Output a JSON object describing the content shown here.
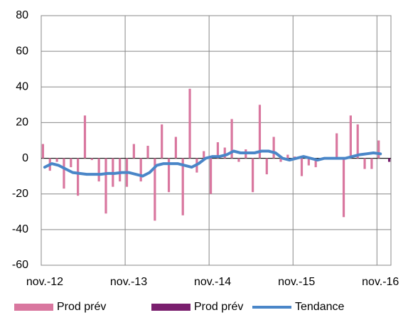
{
  "chart_data": {
    "type": "bar",
    "categories": [
      "nov.-12",
      null,
      null,
      null,
      null,
      null,
      null,
      null,
      null,
      null,
      null,
      null,
      "nov.-13",
      null,
      null,
      null,
      null,
      null,
      null,
      null,
      null,
      null,
      null,
      null,
      "nov.-14",
      null,
      null,
      null,
      null,
      null,
      null,
      null,
      null,
      null,
      null,
      null,
      "nov.-15",
      null,
      null,
      null,
      null,
      null,
      null,
      null,
      null,
      null,
      null,
      null,
      "nov.-16",
      null
    ],
    "series": [
      {
        "name": "Prod prév",
        "color": "#d9779f",
        "type": "bar",
        "values": [
          8,
          -7,
          -2,
          -17,
          -5,
          -21,
          24,
          -1,
          -13,
          -31,
          -16,
          -13,
          -16,
          8,
          -13,
          7,
          -35,
          19,
          -19,
          12,
          -32,
          39,
          -8,
          4,
          -20,
          9,
          6,
          22,
          -2,
          5,
          -19,
          30,
          -9,
          12,
          -2,
          2,
          1,
          -10,
          -4,
          -5,
          0,
          0,
          14,
          -33,
          24,
          19,
          -6,
          -6,
          10,
          null
        ]
      },
      {
        "name": "Prod prév",
        "color": "#7a1f6e",
        "type": "bar",
        "values": [
          null,
          null,
          null,
          null,
          null,
          null,
          null,
          null,
          null,
          null,
          null,
          null,
          null,
          null,
          null,
          null,
          null,
          null,
          null,
          null,
          null,
          null,
          null,
          null,
          null,
          null,
          null,
          null,
          null,
          null,
          null,
          null,
          null,
          null,
          null,
          null,
          null,
          null,
          null,
          null,
          null,
          null,
          null,
          null,
          null,
          null,
          null,
          null,
          null,
          -2
        ]
      },
      {
        "name": "Tendance",
        "color": "#4a86c8",
        "type": "line",
        "values": [
          -5,
          -3,
          -4,
          -6,
          -8,
          -8.5,
          -9,
          -9,
          -9,
          -8.5,
          -8.5,
          -8,
          -8,
          -9,
          -10,
          -8,
          -4,
          -3,
          -3,
          -3,
          -4,
          -5,
          -3,
          0,
          1,
          1,
          2,
          4,
          3,
          3,
          3,
          4,
          4,
          3,
          0,
          -1,
          0,
          1,
          0,
          -1,
          0,
          0,
          0,
          0,
          1,
          2,
          2.5,
          3,
          2.5,
          null
        ]
      }
    ],
    "ylim": [
      -60,
      80
    ],
    "yticks": [
      -60,
      -40,
      -20,
      0,
      20,
      40,
      60,
      80
    ],
    "grid": true
  }
}
